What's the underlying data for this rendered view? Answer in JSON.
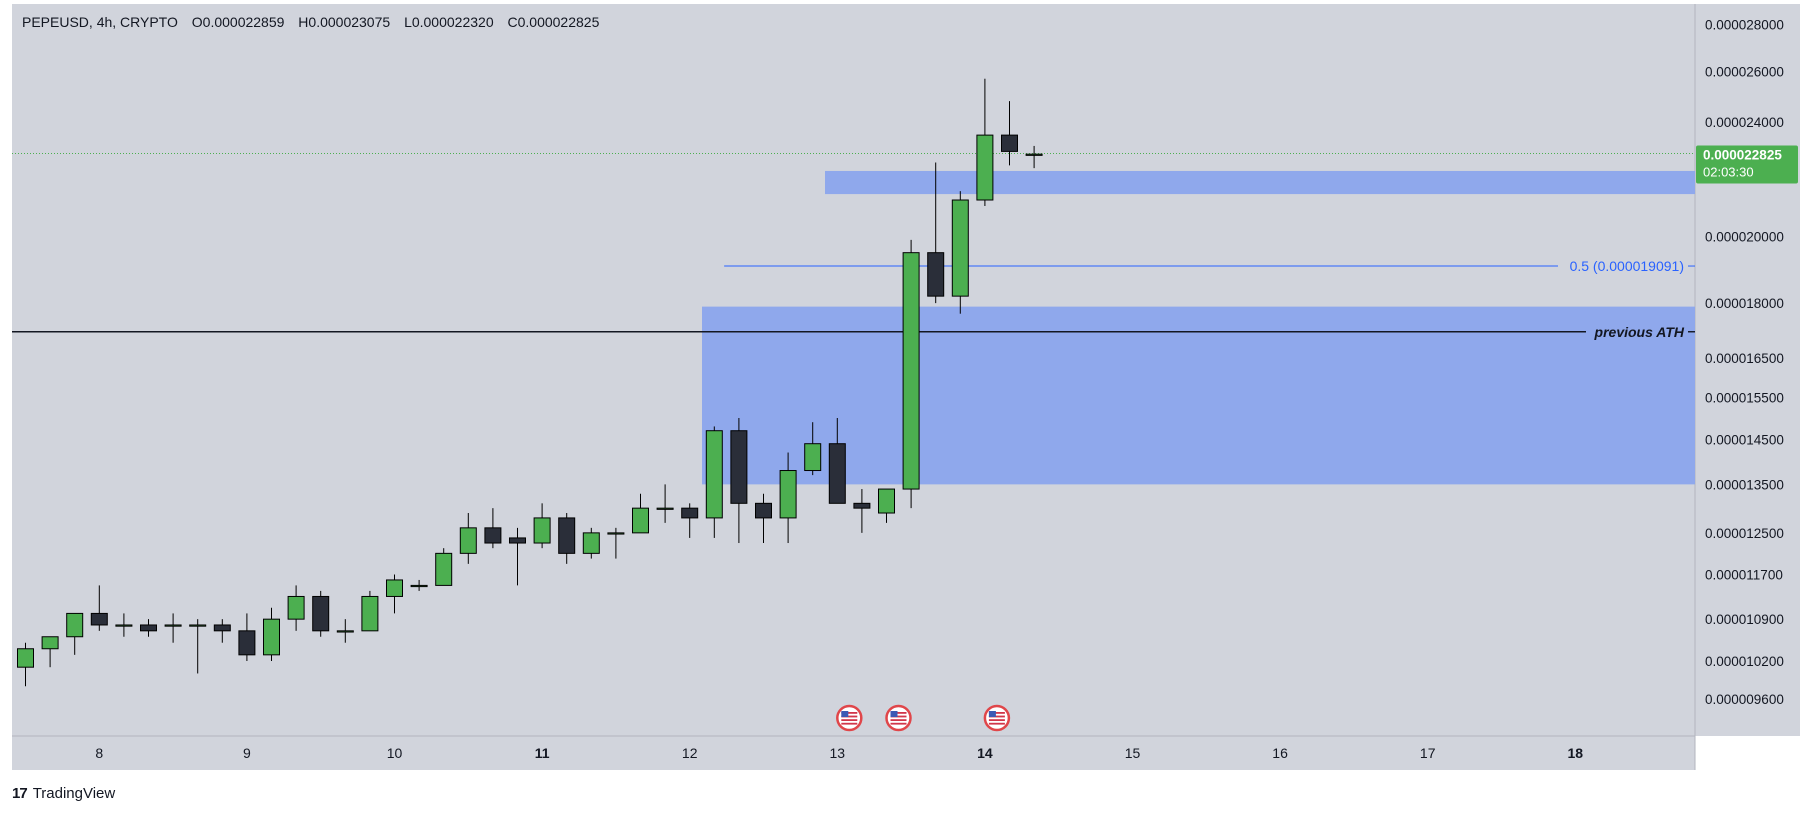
{
  "header": {
    "symbol": "PEPEUSD, 4h, CRYPTO",
    "open": "O0.000022859",
    "high": "H0.000023075",
    "low": "L0.000022320",
    "close": "C0.000022825"
  },
  "price_tag": {
    "price": "0.000022825",
    "countdown": "02:03:30"
  },
  "footer": {
    "brand": "TradingView",
    "logo": "tradingview-logo-icon"
  },
  "colors": {
    "background": "#d1d4dc",
    "up": "#4caf50",
    "down": "#2a2e39",
    "zone": "#8fa8ec",
    "fib": "#2962ff",
    "price_tag": "#4caf50"
  },
  "chart_data": {
    "type": "candlestick",
    "ylim": [
      9.2e-06,
      2.83e-05
    ],
    "y_scale": "log",
    "y_ticks": [
      "0.000028000",
      "0.000026000",
      "0.000024000",
      "0.000020000",
      "0.000018000",
      "0.000016500",
      "0.000015500",
      "0.000014500",
      "0.000013500",
      "0.000012500",
      "0.000011700",
      "0.000010900",
      "0.000010200",
      "0.000009600"
    ],
    "y_tick_values": [
      2.8e-05,
      2.6e-05,
      2.4e-05,
      2e-05,
      1.8e-05,
      1.65e-05,
      1.55e-05,
      1.45e-05,
      1.35e-05,
      1.25e-05,
      1.17e-05,
      1.09e-05,
      1.02e-05,
      9.6e-06
    ],
    "x_ticks": [
      "8",
      "9",
      "10",
      "11",
      "12",
      "13",
      "14",
      "15",
      "16",
      "17",
      "18"
    ],
    "x_tick_bold": [
      "11",
      "14",
      "18"
    ],
    "candles": [
      {
        "o": 1.01e-05,
        "h": 1.05e-05,
        "l": 9.8e-06,
        "c": 1.04e-05
      },
      {
        "o": 1.04e-05,
        "h": 1.06e-05,
        "l": 1.01e-05,
        "c": 1.06e-05
      },
      {
        "o": 1.06e-05,
        "h": 1.1e-05,
        "l": 1.03e-05,
        "c": 1.1e-05
      },
      {
        "o": 1.1e-05,
        "h": 1.15e-05,
        "l": 1.07e-05,
        "c": 1.08e-05
      },
      {
        "o": 1.08e-05,
        "h": 1.1e-05,
        "l": 1.06e-05,
        "c": 1.08e-05
      },
      {
        "o": 1.08e-05,
        "h": 1.09e-05,
        "l": 1.06e-05,
        "c": 1.07e-05
      },
      {
        "o": 1.08e-05,
        "h": 1.1e-05,
        "l": 1.05e-05,
        "c": 1.08e-05
      },
      {
        "o": 1.08e-05,
        "h": 1.09e-05,
        "l": 1e-05,
        "c": 1.08e-05
      },
      {
        "o": 1.08e-05,
        "h": 1.09e-05,
        "l": 1.05e-05,
        "c": 1.07e-05
      },
      {
        "o": 1.07e-05,
        "h": 1.1e-05,
        "l": 1.02e-05,
        "c": 1.03e-05
      },
      {
        "o": 1.03e-05,
        "h": 1.11e-05,
        "l": 1.02e-05,
        "c": 1.09e-05
      },
      {
        "o": 1.09e-05,
        "h": 1.15e-05,
        "l": 1.07e-05,
        "c": 1.13e-05
      },
      {
        "o": 1.13e-05,
        "h": 1.14e-05,
        "l": 1.06e-05,
        "c": 1.07e-05
      },
      {
        "o": 1.07e-05,
        "h": 1.09e-05,
        "l": 1.05e-05,
        "c": 1.07e-05
      },
      {
        "o": 1.07e-05,
        "h": 1.14e-05,
        "l": 1.07e-05,
        "c": 1.13e-05
      },
      {
        "o": 1.13e-05,
        "h": 1.17e-05,
        "l": 1.1e-05,
        "c": 1.16e-05
      },
      {
        "o": 1.15e-05,
        "h": 1.16e-05,
        "l": 1.14e-05,
        "c": 1.15e-05
      },
      {
        "o": 1.15e-05,
        "h": 1.22e-05,
        "l": 1.15e-05,
        "c": 1.21e-05
      },
      {
        "o": 1.21e-05,
        "h": 1.29e-05,
        "l": 1.19e-05,
        "c": 1.26e-05
      },
      {
        "o": 1.26e-05,
        "h": 1.3e-05,
        "l": 1.22e-05,
        "c": 1.23e-05
      },
      {
        "o": 1.24e-05,
        "h": 1.26e-05,
        "l": 1.15e-05,
        "c": 1.23e-05
      },
      {
        "o": 1.23e-05,
        "h": 1.31e-05,
        "l": 1.22e-05,
        "c": 1.28e-05
      },
      {
        "o": 1.28e-05,
        "h": 1.29e-05,
        "l": 1.19e-05,
        "c": 1.21e-05
      },
      {
        "o": 1.21e-05,
        "h": 1.26e-05,
        "l": 1.2e-05,
        "c": 1.25e-05
      },
      {
        "o": 1.25e-05,
        "h": 1.26e-05,
        "l": 1.2e-05,
        "c": 1.25e-05
      },
      {
        "o": 1.25e-05,
        "h": 1.33e-05,
        "l": 1.25e-05,
        "c": 1.3e-05
      },
      {
        "o": 1.3e-05,
        "h": 1.35e-05,
        "l": 1.27e-05,
        "c": 1.3e-05
      },
      {
        "o": 1.3e-05,
        "h": 1.31e-05,
        "l": 1.24e-05,
        "c": 1.28e-05
      },
      {
        "o": 1.28e-05,
        "h": 1.48e-05,
        "l": 1.24e-05,
        "c": 1.47e-05
      },
      {
        "o": 1.47e-05,
        "h": 1.5e-05,
        "l": 1.23e-05,
        "c": 1.31e-05
      },
      {
        "o": 1.31e-05,
        "h": 1.33e-05,
        "l": 1.23e-05,
        "c": 1.28e-05
      },
      {
        "o": 1.28e-05,
        "h": 1.42e-05,
        "l": 1.23e-05,
        "c": 1.38e-05
      },
      {
        "o": 1.38e-05,
        "h": 1.49e-05,
        "l": 1.37e-05,
        "c": 1.44e-05
      },
      {
        "o": 1.44e-05,
        "h": 1.5e-05,
        "l": 1.31e-05,
        "c": 1.31e-05
      },
      {
        "o": 1.31e-05,
        "h": 1.34e-05,
        "l": 1.25e-05,
        "c": 1.3e-05
      },
      {
        "o": 1.29e-05,
        "h": 1.34e-05,
        "l": 1.27e-05,
        "c": 1.34e-05
      },
      {
        "o": 1.34e-05,
        "h": 1.99e-05,
        "l": 1.3e-05,
        "c": 1.95e-05
      },
      {
        "o": 1.95e-05,
        "h": 2.25e-05,
        "l": 1.8e-05,
        "c": 1.82e-05
      },
      {
        "o": 1.82e-05,
        "h": 2.15e-05,
        "l": 1.77e-05,
        "c": 2.12e-05
      },
      {
        "o": 2.12e-05,
        "h": 2.57e-05,
        "l": 2.1e-05,
        "c": 2.35e-05
      },
      {
        "o": 2.35e-05,
        "h": 2.48e-05,
        "l": 2.24e-05,
        "c": 2.29e-05
      },
      {
        "o": 2.28e-05,
        "h": 2.31e-05,
        "l": 2.23e-05,
        "c": 2.28e-05
      }
    ],
    "current_price": 2.2825e-05,
    "annotations": {
      "fib_label": "0.5 (0.000019091)",
      "fib_value": 1.9091e-05,
      "horizontal_line_label": "previous ATH",
      "horizontal_line_value": 1.72e-05,
      "zones": [
        {
          "from_bar": 32.5,
          "top": 2.22e-05,
          "bottom": 2.14e-05
        },
        {
          "from_bar": 27.5,
          "top": 1.79e-05,
          "bottom": 1.35e-05
        }
      ],
      "event_markers": [
        33,
        35,
        39
      ],
      "event_icon": "us-flag-icon"
    }
  }
}
